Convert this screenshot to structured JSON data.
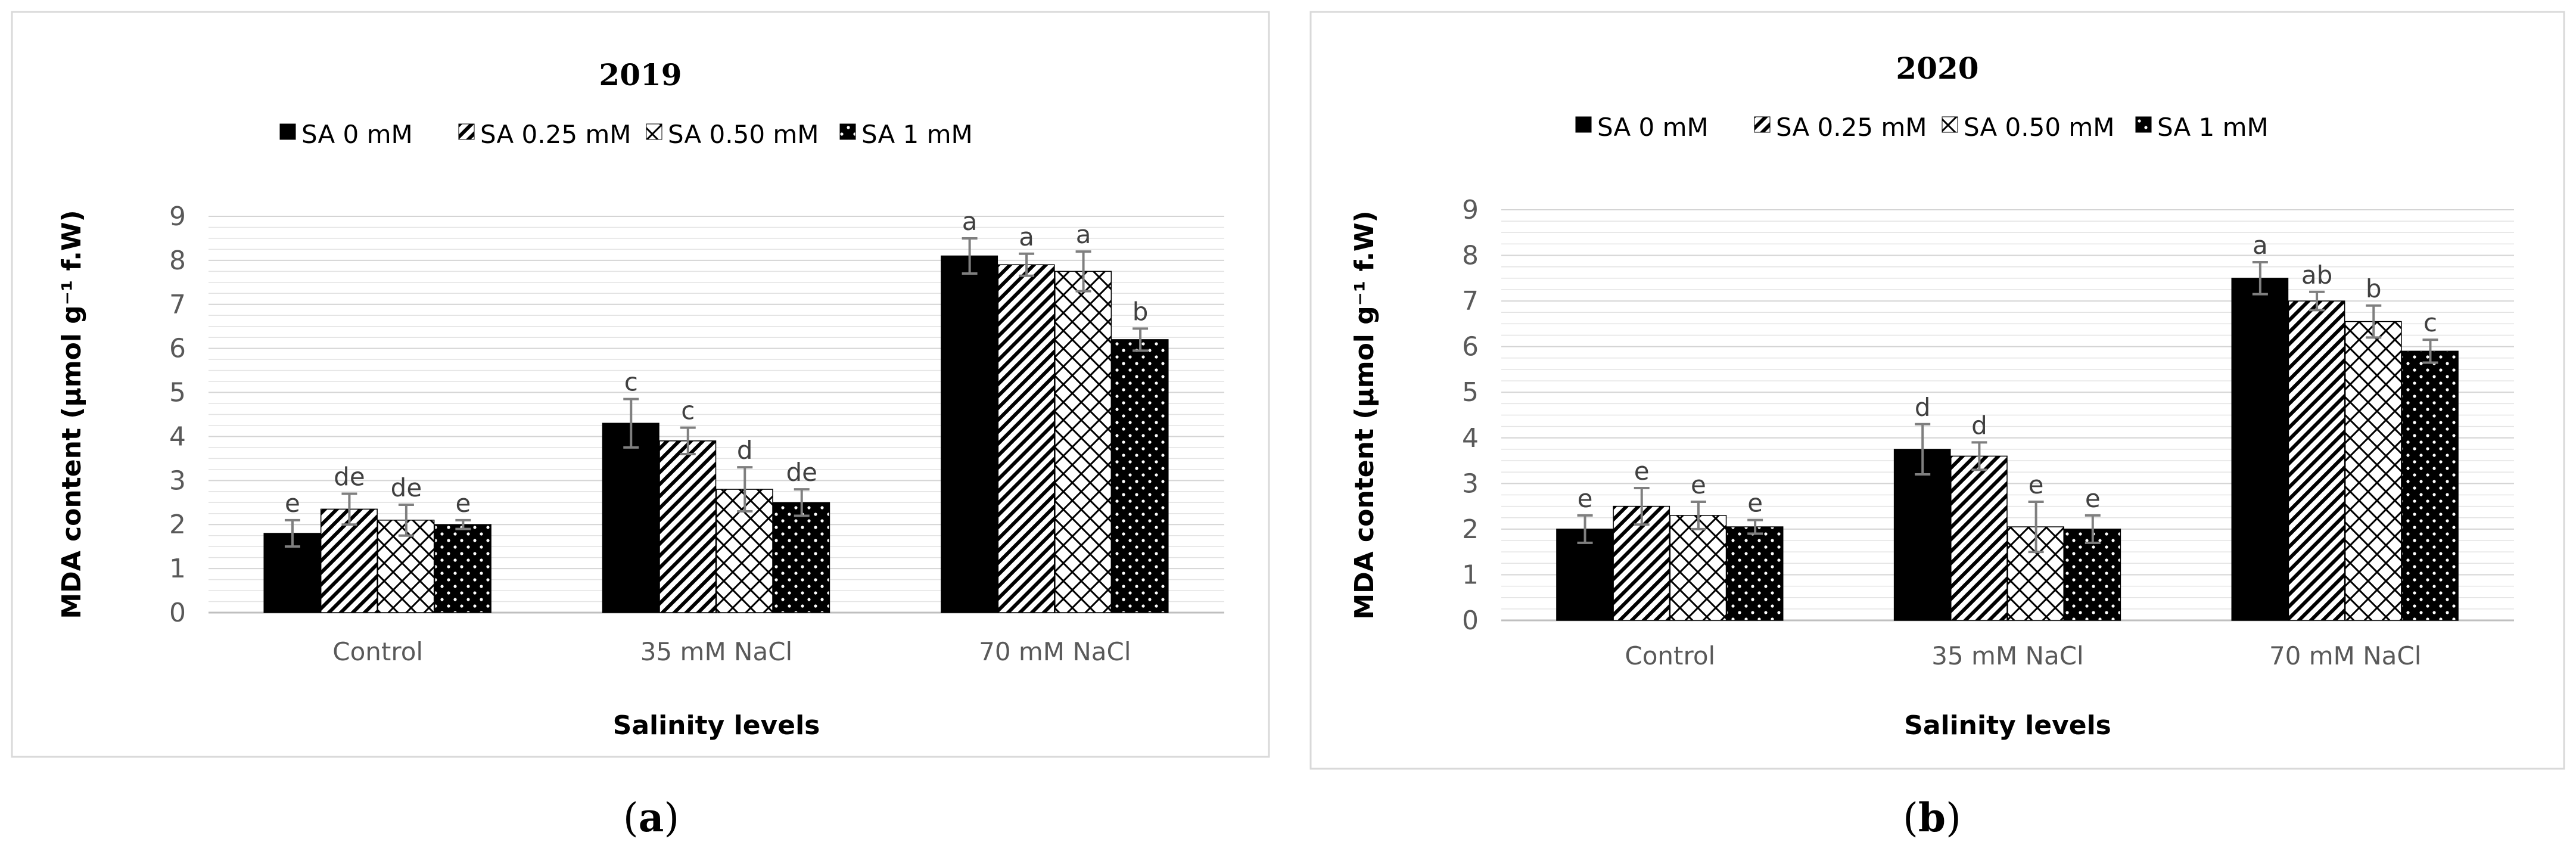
{
  "chart_data": [
    {
      "type": "bar",
      "panel_label": "(a)",
      "panel_label_parts": [
        "(",
        "a",
        ")"
      ],
      "title": "2019",
      "xlabel": "Salinity levels",
      "ylabel": "MDA content (μmol g⁻¹ f.W)",
      "ylim": [
        0,
        9
      ],
      "yticks": [
        "0",
        "1",
        "2",
        "3",
        "4",
        "5",
        "6",
        "7",
        "8",
        "9"
      ],
      "grid": true,
      "legend_position": "top",
      "categories": [
        "Control",
        "35 mM NaCl",
        "70 mM NaCl"
      ],
      "series": [
        {
          "name": "SA 0 mM",
          "values": [
            1.8,
            4.3,
            8.1
          ],
          "errors": [
            0.3,
            0.55,
            0.4
          ],
          "letters": [
            "e",
            "c",
            "a"
          ]
        },
        {
          "name": "SA 0.25 mM",
          "values": [
            2.35,
            3.9,
            7.9
          ],
          "errors": [
            0.35,
            0.3,
            0.25
          ],
          "letters": [
            "de",
            "c",
            "a"
          ]
        },
        {
          "name": "SA 0.50 mM",
          "values": [
            2.1,
            2.8,
            7.75
          ],
          "errors": [
            0.35,
            0.5,
            0.45
          ],
          "letters": [
            "de",
            "d",
            "a"
          ]
        },
        {
          "name": "SA 1 mM",
          "values": [
            2.0,
            2.5,
            6.2
          ],
          "errors": [
            0.1,
            0.3,
            0.25
          ],
          "letters": [
            "e",
            "de",
            "b"
          ]
        }
      ]
    },
    {
      "type": "bar",
      "panel_label": "(b)",
      "panel_label_parts": [
        "(",
        "b",
        ")"
      ],
      "title": "2020",
      "xlabel": "Salinity levels",
      "ylabel": "MDA content (μmol g⁻¹ f.W)",
      "ylim": [
        0,
        9
      ],
      "yticks": [
        "0",
        "1",
        "2",
        "3",
        "4",
        "5",
        "6",
        "7",
        "8",
        "9"
      ],
      "grid": true,
      "legend_position": "top",
      "categories": [
        "Control",
        "35 mM NaCl",
        "70 mM NaCl"
      ],
      "series": [
        {
          "name": "SA 0 mM",
          "values": [
            2.0,
            3.75,
            7.5
          ],
          "errors": [
            0.3,
            0.55,
            0.35
          ],
          "letters": [
            "e",
            "d",
            "a"
          ]
        },
        {
          "name": "SA 0.25 mM",
          "values": [
            2.5,
            3.6,
            7.0
          ],
          "errors": [
            0.4,
            0.3,
            0.2
          ],
          "letters": [
            "e",
            "d",
            "ab"
          ]
        },
        {
          "name": "SA 0.50 mM",
          "values": [
            2.3,
            2.05,
            6.55
          ],
          "errors": [
            0.3,
            0.55,
            0.35
          ],
          "letters": [
            "e",
            "e",
            "b"
          ]
        },
        {
          "name": "SA 1 mM",
          "values": [
            2.05,
            2.0,
            5.9
          ],
          "errors": [
            0.15,
            0.3,
            0.25
          ],
          "letters": [
            "e",
            "e",
            "c"
          ]
        }
      ]
    }
  ],
  "colors": {
    "frame": "#d9d9d9",
    "grid": "#e3e3e3",
    "axis": "#bfbfbf",
    "bar": "#000000",
    "error_bar": "#7f7f7f"
  }
}
